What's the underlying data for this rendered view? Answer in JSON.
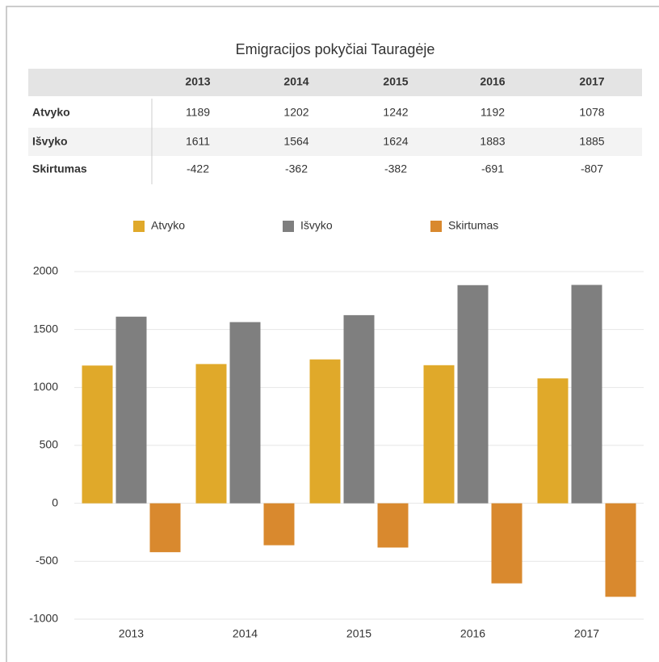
{
  "chart_data": {
    "type": "bar",
    "title": "Emigracijos pokyčiai Tauragėje",
    "categories": [
      "2013",
      "2014",
      "2015",
      "2016",
      "2017"
    ],
    "series": [
      {
        "name": "Atvyko",
        "color": "#e0a92a",
        "values": [
          1189,
          1202,
          1242,
          1192,
          1078
        ]
      },
      {
        "name": "Išvyko",
        "color": "#7f7f7f",
        "values": [
          1611,
          1564,
          1624,
          1883,
          1885
        ]
      },
      {
        "name": "Skirtumas",
        "color": "#d9892e",
        "values": [
          -422,
          -362,
          -382,
          -691,
          -807
        ]
      }
    ],
    "ylim": [
      -1000,
      2000
    ],
    "yticks": [
      -1000,
      -500,
      0,
      500,
      1000,
      1500,
      2000
    ],
    "grid": true,
    "legend": "top"
  },
  "table": {
    "columns": [
      "2013",
      "2014",
      "2015",
      "2016",
      "2017"
    ],
    "rows": [
      {
        "label": "Atvyko",
        "values": [
          1189,
          1202,
          1242,
          1192,
          1078
        ]
      },
      {
        "label": "Išvyko",
        "values": [
          1611,
          1564,
          1624,
          1883,
          1885
        ]
      },
      {
        "label": "Skirtumas",
        "values": [
          -422,
          -362,
          -382,
          -691,
          -807
        ]
      }
    ]
  }
}
